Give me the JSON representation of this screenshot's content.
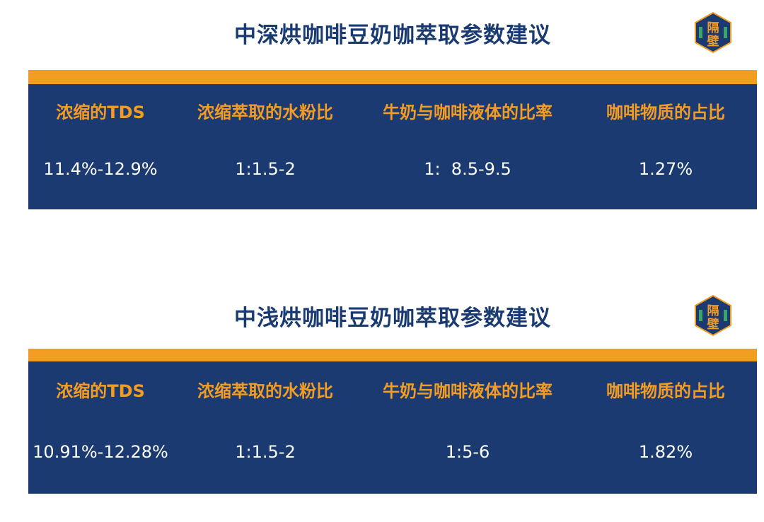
{
  "logo_text": "隔壁",
  "colors": {
    "accent": "#f39c23",
    "panel": "#1b3a72",
    "title": "#1a3a72"
  },
  "sections": [
    {
      "title": "中深烘咖啡豆奶咖萃取参数建议",
      "headers": [
        "浓缩的TDS",
        "浓缩萃取的水粉比",
        "牛奶与咖啡液体的比率",
        "咖啡物质的占比"
      ],
      "values": [
        "11.4%-12.9%",
        "1:1.5-2",
        "1:  8.5-9.5",
        "1.27%"
      ]
    },
    {
      "title": "中浅烘咖啡豆奶咖萃取参数建议",
      "headers": [
        "浓缩的TDS",
        "浓缩萃取的水粉比",
        "牛奶与咖啡液体的比率",
        "咖啡物质的占比"
      ],
      "values": [
        "10.91%-12.28%",
        "1:1.5-2",
        "1:5-6",
        "1.82%"
      ]
    }
  ]
}
